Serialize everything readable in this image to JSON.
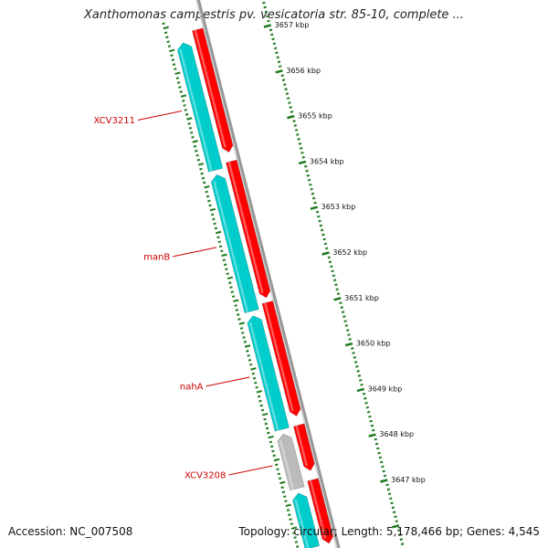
{
  "title": "Xanthomonas campestris pv. vesicatoria str. 85-10, complete ...",
  "footer": {
    "accession": "Accession: NC_007508",
    "summary": "Topology: circular; Length: 5,178,466 bp; Genes: 4,545"
  },
  "colors": {
    "forward_gene": "#ff0000",
    "reverse_gene": "#00cccc",
    "pseudogene": "#bbbbbb",
    "backbone": "#888888",
    "ticks": "#1a7a1a",
    "label": "#cc0000"
  },
  "ruler": {
    "unit": "kbp",
    "ticks": [
      {
        "kbp": 3657,
        "label": "3657 kbp"
      },
      {
        "kbp": 3656,
        "label": "3656 kbp"
      },
      {
        "kbp": 3655,
        "label": "3655 kbp"
      },
      {
        "kbp": 3654,
        "label": "3654 kbp"
      },
      {
        "kbp": 3653,
        "label": "3653 kbp"
      },
      {
        "kbp": 3652,
        "label": "3652 kbp"
      },
      {
        "kbp": 3651,
        "label": "3651 kbp"
      },
      {
        "kbp": 3650,
        "label": "3650 kbp"
      },
      {
        "kbp": 3649,
        "label": "3649 kbp"
      },
      {
        "kbp": 3648,
        "label": "3648 kbp"
      },
      {
        "kbp": 3647,
        "label": "3647 kbp"
      }
    ]
  },
  "genes": [
    {
      "name": "XCV3211",
      "strand": "reverse",
      "start": 3654.3,
      "end": 3657.1
    },
    {
      "name": "manB",
      "strand": "reverse",
      "start": 3651.2,
      "end": 3654.2
    },
    {
      "name": "nahA",
      "strand": "reverse",
      "start": 3648.6,
      "end": 3651.1
    },
    {
      "name": "XCV3208",
      "strand": "pseudo",
      "start": 3647.3,
      "end": 3648.5
    },
    {
      "name": "",
      "strand": "reverse",
      "start": 3646.0,
      "end": 3647.2
    }
  ],
  "orfs": [
    {
      "strand": "forward",
      "start": 3654.6,
      "end": 3657.3
    },
    {
      "strand": "forward",
      "start": 3651.4,
      "end": 3654.4
    },
    {
      "strand": "forward",
      "start": 3648.8,
      "end": 3651.3
    },
    {
      "strand": "forward",
      "start": 3647.6,
      "end": 3648.6
    },
    {
      "strand": "forward",
      "start": 3646.0,
      "end": 3647.4
    }
  ]
}
